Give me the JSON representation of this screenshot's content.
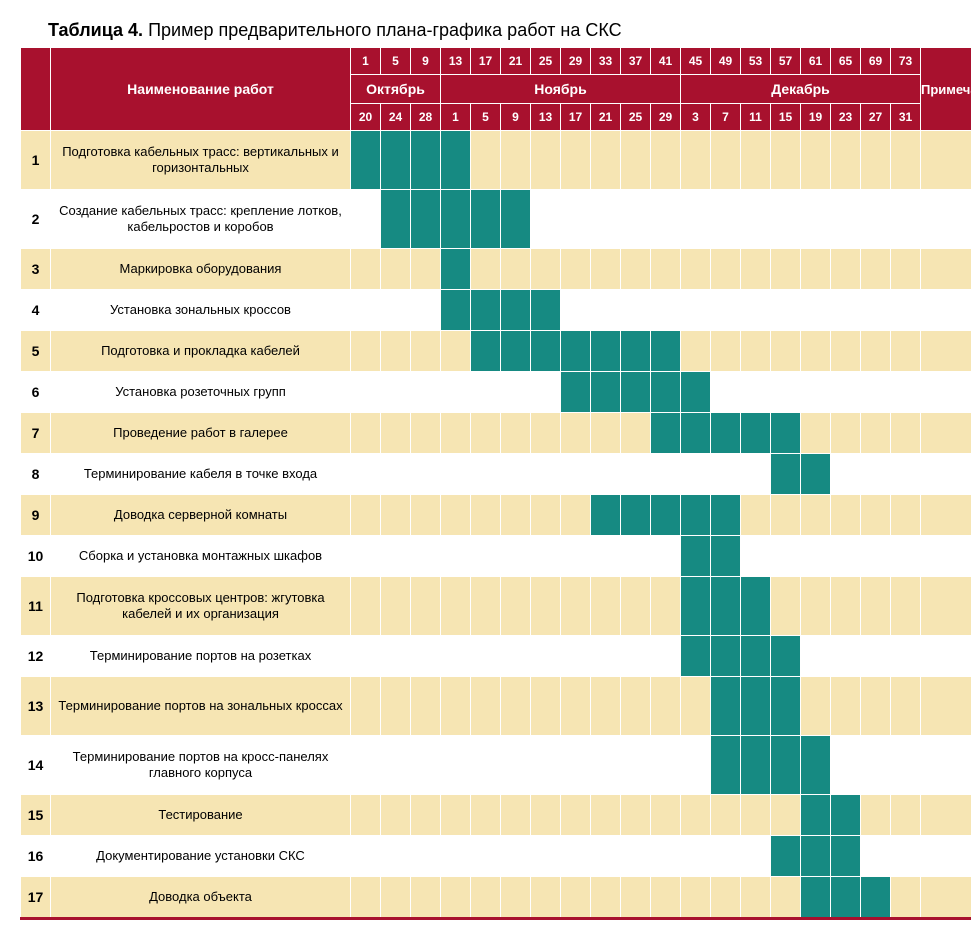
{
  "title_label": "Таблица 4.",
  "title_text": "Пример предварительного плана-графика работ на СКС",
  "header": {
    "task_name": "Наименование работ",
    "note": "Примечание",
    "days": [
      "1",
      "5",
      "9",
      "13",
      "17",
      "21",
      "25",
      "29",
      "33",
      "37",
      "41",
      "45",
      "49",
      "53",
      "57",
      "61",
      "65",
      "69",
      "73"
    ],
    "months": [
      {
        "label": "Октябрь",
        "span": 3
      },
      {
        "label": "Ноябрь",
        "span": 8
      },
      {
        "label": "Декабрь",
        "span": 8
      }
    ],
    "dates": [
      "20",
      "24",
      "28",
      "1",
      "5",
      "9",
      "13",
      "17",
      "21",
      "25",
      "29",
      "3",
      "7",
      "11",
      "15",
      "19",
      "23",
      "27",
      "31"
    ]
  },
  "tasks": [
    {
      "num": "1",
      "name": "Подготовка кабельных трасс: вертикальных и горизонтальных",
      "tall": true,
      "fill": [
        0,
        1,
        2,
        3
      ]
    },
    {
      "num": "2",
      "name": "Создание кабельных трасс: крепление лотков, кабельростов и коробов",
      "tall": true,
      "fill": [
        1,
        2,
        3,
        4,
        5
      ]
    },
    {
      "num": "3",
      "name": "Маркировка оборудования",
      "tall": false,
      "fill": [
        3
      ]
    },
    {
      "num": "4",
      "name": "Установка зональных кроссов",
      "tall": false,
      "fill": [
        3,
        4,
        5,
        6
      ]
    },
    {
      "num": "5",
      "name": "Подготовка и прокладка кабелей",
      "tall": false,
      "fill": [
        4,
        5,
        6,
        7,
        8,
        9,
        10
      ]
    },
    {
      "num": "6",
      "name": "Установка розеточных групп",
      "tall": false,
      "fill": [
        7,
        8,
        9,
        10,
        11
      ]
    },
    {
      "num": "7",
      "name": "Проведение работ в галерее",
      "tall": false,
      "fill": [
        10,
        11,
        12,
        13,
        14
      ]
    },
    {
      "num": "8",
      "name": "Терминирование кабеля в точке входа",
      "tall": false,
      "fill": [
        14,
        15
      ]
    },
    {
      "num": "9",
      "name": "Доводка серверной комнаты",
      "tall": false,
      "fill": [
        8,
        9,
        10,
        11,
        12
      ]
    },
    {
      "num": "10",
      "name": "Сборка и установка монтажных шкафов",
      "tall": false,
      "fill": [
        11,
        12
      ]
    },
    {
      "num": "11",
      "name": "Подготовка кроссовых центров: жгутовка кабелей и их организация",
      "tall": true,
      "fill": [
        11,
        12,
        13
      ]
    },
    {
      "num": "12",
      "name": "Терминирование портов на розетках",
      "tall": false,
      "fill": [
        11,
        12,
        13,
        14
      ]
    },
    {
      "num": "13",
      "name": "Терминирование портов на зональных кроссах",
      "tall": true,
      "fill": [
        12,
        13,
        14
      ]
    },
    {
      "num": "14",
      "name": "Терминирование портов на кросс-панелях главного корпуса",
      "tall": true,
      "fill": [
        12,
        13,
        14,
        15
      ]
    },
    {
      "num": "15",
      "name": "Тестирование",
      "tall": false,
      "fill": [
        15,
        16
      ]
    },
    {
      "num": "16",
      "name": "Документирование установки СКС",
      "tall": false,
      "fill": [
        14,
        15,
        16
      ]
    },
    {
      "num": "17",
      "name": "Доводка объекта",
      "tall": false,
      "fill": [
        15,
        16,
        17
      ]
    }
  ],
  "colors": {
    "header_bg": "#a8112e",
    "header_fg": "#ffffff",
    "row_odd_bg": "#f6e5b3",
    "row_even_bg": "#ffffff",
    "fill": "#168a82",
    "border": "#ffffff"
  },
  "num_day_cols": 19
}
